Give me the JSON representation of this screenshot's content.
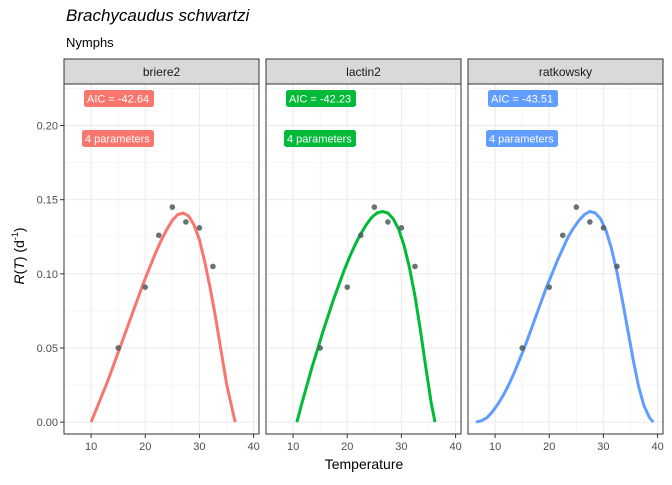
{
  "title": "Brachycaudus schwartzi",
  "subtitle": "Nymphs",
  "chart_data": {
    "type": "line",
    "xlabel": "Temperature",
    "ylabel_prefix": "R",
    "ylabel_var": "T",
    "ylabel_unit_open": " (d",
    "ylabel_unit_exp": "-1",
    "ylabel_unit_close": ")",
    "xlim": [
      5,
      41
    ],
    "ylim": [
      -0.008,
      0.228
    ],
    "xticks": [
      10,
      20,
      30,
      40
    ],
    "yticks": [
      0.0,
      0.05,
      0.1,
      0.15,
      0.2
    ],
    "ytick_labels": [
      "0.00",
      "0.05",
      "0.10",
      "0.15",
      "0.20"
    ],
    "grid": true,
    "points": {
      "x": [
        15,
        20,
        22.5,
        25,
        27.5,
        30,
        32.5
      ],
      "y": [
        0.05,
        0.091,
        0.126,
        0.145,
        0.135,
        0.131,
        0.105
      ],
      "color": "#4d5b5b"
    },
    "panels": [
      {
        "name": "briere2",
        "color": "#f8766d",
        "aic_label": "AIC = -42.64",
        "param_label": "4 parameters",
        "curve": {
          "x": [
            10,
            11,
            12,
            13,
            14,
            15,
            16,
            17,
            18,
            19,
            20,
            21,
            22,
            23,
            24,
            25,
            26,
            27,
            28,
            29,
            30,
            31,
            32,
            33,
            34,
            35,
            35.8,
            36.3,
            36.6
          ],
          "y": [
            0.0,
            0.009,
            0.018,
            0.027,
            0.037,
            0.047,
            0.057,
            0.067,
            0.077,
            0.087,
            0.097,
            0.106,
            0.115,
            0.123,
            0.13,
            0.136,
            0.14,
            0.141,
            0.139,
            0.133,
            0.123,
            0.108,
            0.09,
            0.07,
            0.048,
            0.026,
            0.013,
            0.005,
            0.0
          ]
        }
      },
      {
        "name": "lactin2",
        "color": "#00ba38",
        "aic_label": "AIC = -42.23",
        "param_label": "4 parameters",
        "curve": {
          "x": [
            10.7,
            11.5,
            12.5,
            13.5,
            14.5,
            15.5,
            16.5,
            17.5,
            18.5,
            19.5,
            20.5,
            21.5,
            22.5,
            23.5,
            24.5,
            25.5,
            26.5,
            27.5,
            28.5,
            29.5,
            30.5,
            31.5,
            32.5,
            33.5,
            34.5,
            35.5,
            36.2
          ],
          "y": [
            0.0,
            0.011,
            0.024,
            0.037,
            0.049,
            0.061,
            0.072,
            0.083,
            0.093,
            0.103,
            0.112,
            0.12,
            0.127,
            0.133,
            0.138,
            0.141,
            0.142,
            0.141,
            0.137,
            0.13,
            0.119,
            0.104,
            0.085,
            0.062,
            0.037,
            0.013,
            0.0
          ]
        }
      },
      {
        "name": "ratkowsky",
        "color": "#619cff",
        "aic_label": "AIC = -43.51",
        "param_label": "4 parameters",
        "curve": {
          "x": [
            6.5,
            7.5,
            8.5,
            9.5,
            10.5,
            11.5,
            12.5,
            13.5,
            14.5,
            15.5,
            16.5,
            17.5,
            18.5,
            19.5,
            20.5,
            21.5,
            22.5,
            23.5,
            24.5,
            25.5,
            26.5,
            27.5,
            28.5,
            29.5,
            30.5,
            31.5,
            32.5,
            33.5,
            34.5,
            35.5,
            36.5,
            37.5,
            38.5,
            39.2
          ],
          "y": [
            0.0,
            0.001,
            0.003,
            0.007,
            0.012,
            0.018,
            0.025,
            0.033,
            0.042,
            0.051,
            0.061,
            0.071,
            0.081,
            0.091,
            0.1,
            0.109,
            0.117,
            0.125,
            0.131,
            0.136,
            0.14,
            0.142,
            0.141,
            0.137,
            0.129,
            0.117,
            0.101,
            0.082,
            0.062,
            0.042,
            0.024,
            0.011,
            0.003,
            0.0
          ]
        }
      }
    ]
  }
}
